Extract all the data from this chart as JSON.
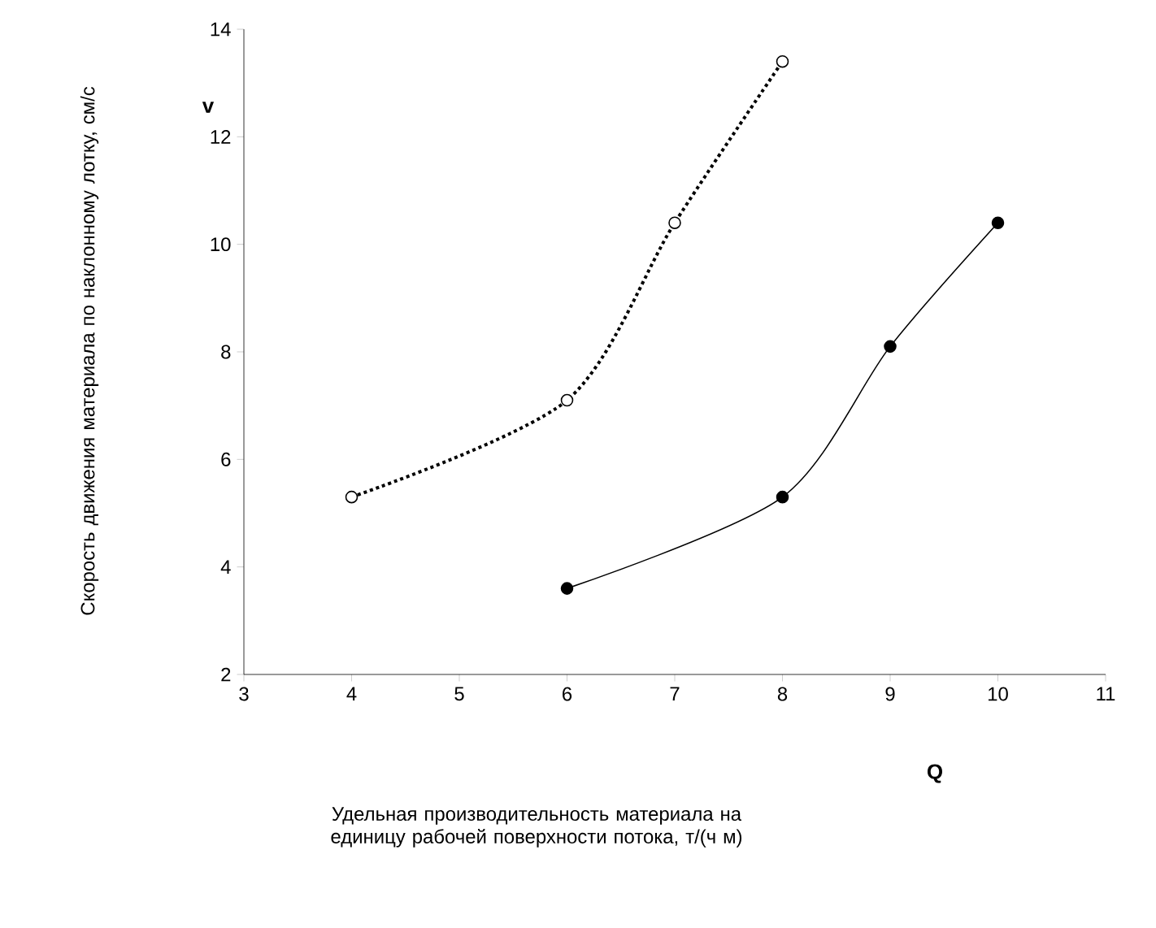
{
  "chart_data": {
    "type": "line",
    "xlabel": "Q",
    "ylabel": "v",
    "annotations": [
      "Удельная производительность материала на единицу рабочей поверхности потока, т/(ч м)",
      "Скорость движения материала по наклонному лотку, см/с"
    ],
    "xlim": [
      3,
      11
    ],
    "ylim": [
      2,
      14
    ],
    "xticks": [
      3,
      4,
      5,
      6,
      7,
      8,
      9,
      10,
      11
    ],
    "yticks": [
      2,
      4,
      6,
      8,
      10,
      12,
      14
    ],
    "grid": false,
    "series": [
      {
        "x": [
          4,
          6,
          7,
          8
        ],
        "values": [
          5.3,
          7.1,
          10.4,
          13.4
        ],
        "color": "#000000",
        "marker": "circle",
        "line_style": "dotted"
      },
      {
        "x": [
          6,
          8,
          9,
          10
        ],
        "values": [
          3.6,
          5.3,
          8.1,
          10.4
        ],
        "color": "#000000",
        "marker": "circle",
        "line_style": "solid"
      }
    ]
  }
}
